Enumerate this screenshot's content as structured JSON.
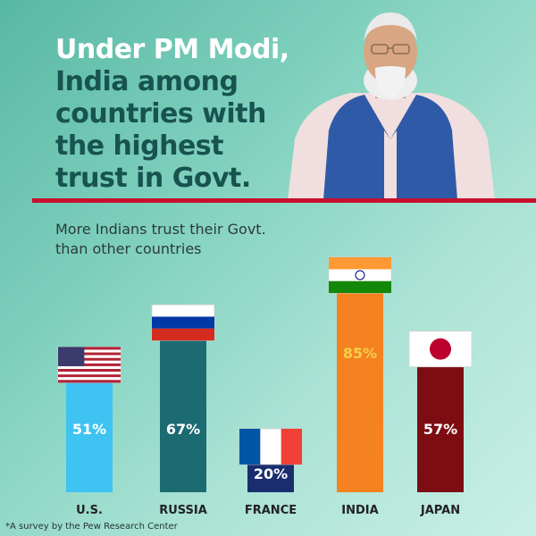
{
  "headline": {
    "line1": "Under PM Modi,",
    "line2": "India among",
    "line3": "countries with",
    "line4": "the highest",
    "line5": "trust in Govt."
  },
  "subtitle": "More Indians trust their Govt. than other countries",
  "footnote": "*A survey by the Pew Research Center",
  "colors": {
    "accent_red": "#c8102e",
    "headline_dark": "#17534f"
  },
  "chart_data": {
    "type": "bar",
    "title": "More Indians trust their Govt. than other countries",
    "categories": [
      "U.S.",
      "RUSSIA",
      "FRANCE",
      "INDIA",
      "JAPAN"
    ],
    "values": [
      51,
      67,
      20,
      85,
      57
    ],
    "labels": [
      "51%",
      "67%",
      "20%",
      "85%",
      "57%"
    ],
    "bar_colors": [
      "#3fc3f2",
      "#1c6b72",
      "#1a2e6e",
      "#f58220",
      "#7d0d12"
    ],
    "label_colors": [
      "#ffffff",
      "#ffffff",
      "#ffffff",
      "#f7d046",
      "#ffffff"
    ],
    "flags": [
      "us-flag",
      "russia-flag",
      "france-flag",
      "india-flag",
      "japan-flag"
    ],
    "ylim": [
      0,
      100
    ],
    "xlabel": "",
    "ylabel": ""
  }
}
